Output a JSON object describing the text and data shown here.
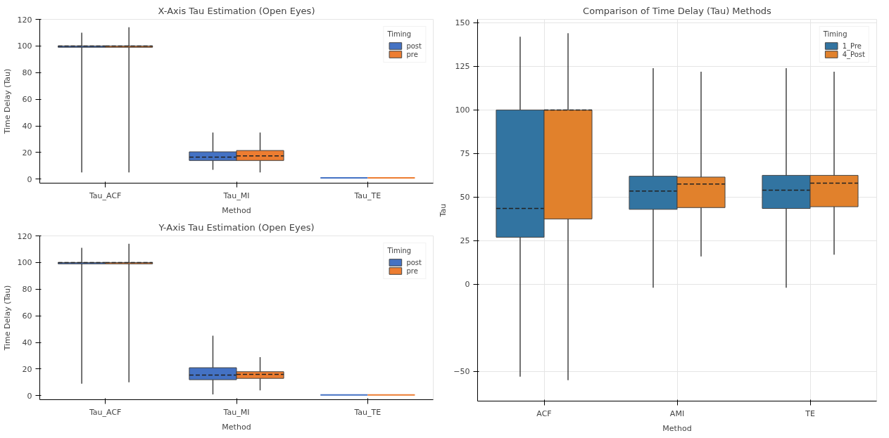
{
  "chart_data": [
    {
      "type": "box",
      "title": "X-Axis Tau Estimation (Open Eyes)",
      "xlabel": "Method",
      "ylabel": "Time Delay (Tau)",
      "legend_title": "Timing",
      "legend": "top right",
      "grid": false,
      "categories": [
        "Tau_ACF",
        "Tau_MI",
        "Tau_TE"
      ],
      "ylim": [
        -3,
        120
      ],
      "yticks": [
        0,
        20,
        40,
        60,
        80,
        100,
        120
      ],
      "series": [
        {
          "name": "post",
          "color": "#4472c4",
          "boxes": [
            {
              "low": 5,
              "q1": 99,
              "median": 100,
              "q3": 100,
              "high": 110
            },
            {
              "low": 7,
              "q1": 14,
              "median": 16.5,
              "q3": 20.5,
              "high": 35
            },
            {
              "low": 1,
              "q1": 1,
              "median": 1,
              "q3": 1,
              "high": 1
            }
          ]
        },
        {
          "name": "pre",
          "color": "#ed7d31",
          "boxes": [
            {
              "low": 5,
              "q1": 99,
              "median": 100,
              "q3": 100,
              "high": 114
            },
            {
              "low": 5,
              "q1": 14,
              "median": 17.5,
              "q3": 21.5,
              "high": 35
            },
            {
              "low": 1,
              "q1": 1,
              "median": 1,
              "q3": 1,
              "high": 1
            }
          ]
        }
      ]
    },
    {
      "type": "box",
      "title": "Y-Axis Tau Estimation (Open Eyes)",
      "xlabel": "Method",
      "ylabel": "Time Delay (Tau)",
      "legend_title": "Timing",
      "legend": "top right",
      "grid": false,
      "categories": [
        "Tau_ACF",
        "Tau_MI",
        "Tau_TE"
      ],
      "ylim": [
        -3,
        120
      ],
      "yticks": [
        0,
        20,
        40,
        60,
        80,
        100,
        120
      ],
      "series": [
        {
          "name": "post",
          "color": "#4472c4",
          "boxes": [
            {
              "low": 9,
              "q1": 99,
              "median": 100,
              "q3": 100,
              "high": 111
            },
            {
              "low": 1,
              "q1": 12,
              "median": 15.5,
              "q3": 21,
              "high": 45
            },
            {
              "low": 0.5,
              "q1": 0.5,
              "median": 0.5,
              "q3": 0.5,
              "high": 0.5
            }
          ]
        },
        {
          "name": "pre",
          "color": "#ed7d31",
          "boxes": [
            {
              "low": 10,
              "q1": 99,
              "median": 100,
              "q3": 100,
              "high": 114
            },
            {
              "low": 4,
              "q1": 13,
              "median": 16,
              "q3": 18,
              "high": 29
            },
            {
              "low": 0.5,
              "q1": 0.5,
              "median": 0.5,
              "q3": 0.5,
              "high": 0.5
            }
          ]
        }
      ]
    },
    {
      "type": "box",
      "title": "Comparison of Time Delay (Tau) Methods",
      "xlabel": "Method",
      "ylabel": "Tau",
      "legend_title": "Timing",
      "legend": "top right",
      "grid": true,
      "categories": [
        "ACF",
        "AMI",
        "TE"
      ],
      "ylim": [
        -67,
        152
      ],
      "yticks": [
        -50,
        0,
        25,
        50,
        75,
        100,
        125,
        150
      ],
      "series": [
        {
          "name": "1_Pre",
          "color": "#3274a1",
          "boxes": [
            {
              "low": -53,
              "q1": 27,
              "median": 43.5,
              "q3": 100,
              "high": 142
            },
            {
              "low": -2,
              "q1": 43,
              "median": 53.5,
              "q3": 62,
              "high": 124
            },
            {
              "low": -2,
              "q1": 43.5,
              "median": 54,
              "q3": 62.5,
              "high": 124
            }
          ]
        },
        {
          "name": "4_Post",
          "color": "#e1812c",
          "boxes": [
            {
              "low": -55,
              "q1": 37.5,
              "median": 100,
              "q3": 100,
              "high": 144
            },
            {
              "low": 16,
              "q1": 44,
              "median": 57.5,
              "q3": 61.5,
              "high": 122
            },
            {
              "low": 17,
              "q1": 44.5,
              "median": 58,
              "q3": 62.5,
              "high": 122
            }
          ]
        }
      ]
    }
  ]
}
